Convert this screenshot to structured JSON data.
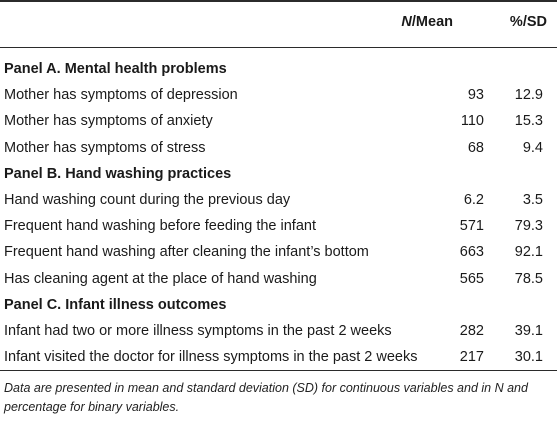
{
  "header": {
    "col1_italic": "N",
    "col1_rest": "/Mean",
    "col2": "%/SD"
  },
  "rows": [
    {
      "type": "panel",
      "label": "Panel A. Mental health problems",
      "v1": "",
      "v2": ""
    },
    {
      "type": "data",
      "label": "Mother has symptoms of depression",
      "v1": "93",
      "v2": "12.9"
    },
    {
      "type": "data",
      "label": "Mother has symptoms of anxiety",
      "v1": "110",
      "v2": "15.3"
    },
    {
      "type": "data",
      "label": "Mother has symptoms of stress",
      "v1": "68",
      "v2": "9.4"
    },
    {
      "type": "panel",
      "label": "Panel B. Hand washing practices",
      "v1": "",
      "v2": ""
    },
    {
      "type": "data",
      "label": "Hand washing count during the previous day",
      "v1": "6.2",
      "v2": "3.5"
    },
    {
      "type": "data",
      "label": "Frequent hand washing before feeding the infant",
      "v1": "571",
      "v2": "79.3"
    },
    {
      "type": "data",
      "label": "Frequent hand washing after cleaning the infant’s bottom",
      "v1": "663",
      "v2": "92.1"
    },
    {
      "type": "data",
      "label": "Has cleaning agent at the place of hand washing",
      "v1": "565",
      "v2": "78.5"
    },
    {
      "type": "panel",
      "label": "Panel C. Infant illness outcomes",
      "v1": "",
      "v2": ""
    },
    {
      "type": "data",
      "label": "Infant had two or more illness symptoms in the past 2 weeks",
      "v1": "282",
      "v2": "39.1"
    },
    {
      "type": "data",
      "label": "Infant visited the doctor for illness symptoms in the past 2 weeks",
      "v1": "217",
      "v2": "30.1"
    }
  ],
  "footnote": "Data are presented in mean and standard deviation (SD) for continuous variables and in N and percentage for binary variables."
}
